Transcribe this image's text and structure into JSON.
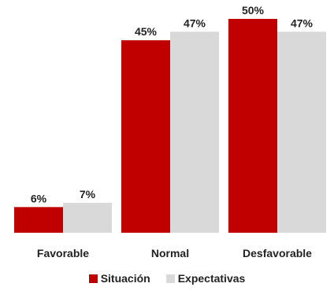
{
  "chart_data": {
    "type": "bar",
    "categories": [
      "Favorable",
      "Normal",
      "Desfavorable"
    ],
    "series": [
      {
        "name": "Situación",
        "values": [
          6,
          45,
          50
        ],
        "labels": [
          "6%",
          "45%",
          "50%"
        ],
        "color": "#c00000"
      },
      {
        "name": "Expectativas",
        "values": [
          7,
          47,
          47
        ],
        "labels": [
          "7%",
          "47%",
          "47%"
        ],
        "color": "#d9d9d9"
      }
    ],
    "ylim": [
      0,
      50
    ],
    "grid": false,
    "legend_position": "bottom"
  }
}
